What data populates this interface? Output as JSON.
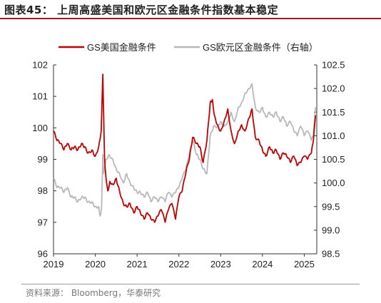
{
  "title": "图表45：  上周高盛美国和欧元区金融条件指数基本稳定",
  "source": "资料来源：  Bloomberg，华泰研究",
  "chart_data": {
    "type": "line",
    "title": "",
    "xlabel": "",
    "ylabel": "",
    "x_ticks": [
      "2019",
      "2020",
      "2021",
      "2022",
      "2023",
      "2024",
      "2025"
    ],
    "x_range": [
      2019.0,
      2025.3
    ],
    "y_left": {
      "range": [
        96,
        102
      ],
      "ticks": [
        "96",
        "97",
        "98",
        "99",
        "100",
        "101",
        "102"
      ]
    },
    "y_right": {
      "range": [
        98.5,
        102.5
      ],
      "ticks": [
        "98.5",
        "99.0",
        "99.5",
        "100.0",
        "100.5",
        "101.0",
        "101.5",
        "102.0",
        "102.5"
      ]
    },
    "legend_position": "top",
    "grid": false,
    "series": [
      {
        "name": "GS美国金融条件",
        "axis": "left",
        "color": "#c00000",
        "x": [
          2019.0,
          2019.08,
          2019.17,
          2019.25,
          2019.33,
          2019.42,
          2019.5,
          2019.58,
          2019.67,
          2019.75,
          2019.83,
          2019.92,
          2020.0,
          2020.08,
          2020.14,
          2020.18,
          2020.2,
          2020.22,
          2020.25,
          2020.3,
          2020.35,
          2020.42,
          2020.5,
          2020.58,
          2020.67,
          2020.75,
          2020.83,
          2020.92,
          2021.0,
          2021.08,
          2021.17,
          2021.25,
          2021.33,
          2021.42,
          2021.5,
          2021.58,
          2021.67,
          2021.75,
          2021.83,
          2021.92,
          2022.0,
          2022.08,
          2022.17,
          2022.25,
          2022.33,
          2022.42,
          2022.5,
          2022.58,
          2022.67,
          2022.75,
          2022.8,
          2022.85,
          2022.92,
          2023.0,
          2023.08,
          2023.17,
          2023.25,
          2023.33,
          2023.42,
          2023.5,
          2023.58,
          2023.67,
          2023.75,
          2023.83,
          2023.92,
          2024.0,
          2024.08,
          2024.17,
          2024.25,
          2024.33,
          2024.42,
          2024.5,
          2024.58,
          2024.67,
          2024.75,
          2024.83,
          2024.92,
          2025.0,
          2025.08,
          2025.17,
          2025.22,
          2025.27
        ],
        "y": [
          99.9,
          99.6,
          99.5,
          99.3,
          99.5,
          99.3,
          99.4,
          99.3,
          99.5,
          99.4,
          99.2,
          99.3,
          99.1,
          99.4,
          99.9,
          101.7,
          100.4,
          99.1,
          98.5,
          98.0,
          98.3,
          98.2,
          98.4,
          98.0,
          97.6,
          97.5,
          97.6,
          97.3,
          97.5,
          97.3,
          97.1,
          97.3,
          97.1,
          97.0,
          97.2,
          97.4,
          97.0,
          97.4,
          97.6,
          97.1,
          97.8,
          98.0,
          98.6,
          99.0,
          99.7,
          99.5,
          99.4,
          98.9,
          99.6,
          100.8,
          100.9,
          100.4,
          100.1,
          99.9,
          100.2,
          100.6,
          99.9,
          99.5,
          99.9,
          100.1,
          99.9,
          100.3,
          100.6,
          99.7,
          99.6,
          99.3,
          99.1,
          99.4,
          99.2,
          99.3,
          99.0,
          99.2,
          99.1,
          98.9,
          99.1,
          98.8,
          98.9,
          99.1,
          99.0,
          99.2,
          99.6,
          100.4
        ]
      },
      {
        "name": "GS欧元区金融条件（右轴）",
        "axis": "right",
        "color": "#b8b8b8",
        "x": [
          2019.0,
          2019.08,
          2019.17,
          2019.25,
          2019.33,
          2019.42,
          2019.5,
          2019.58,
          2019.67,
          2019.75,
          2019.83,
          2019.92,
          2020.0,
          2020.08,
          2020.12,
          2020.15,
          2020.18,
          2020.2,
          2020.25,
          2020.33,
          2020.42,
          2020.5,
          2020.58,
          2020.67,
          2020.75,
          2020.83,
          2020.92,
          2021.0,
          2021.08,
          2021.17,
          2021.25,
          2021.33,
          2021.42,
          2021.5,
          2021.58,
          2021.67,
          2021.75,
          2021.83,
          2021.92,
          2022.0,
          2022.08,
          2022.17,
          2022.25,
          2022.33,
          2022.42,
          2022.5,
          2022.58,
          2022.67,
          2022.75,
          2022.83,
          2022.92,
          2023.0,
          2023.08,
          2023.17,
          2023.25,
          2023.33,
          2023.42,
          2023.5,
          2023.58,
          2023.67,
          2023.75,
          2023.83,
          2023.92,
          2024.0,
          2024.08,
          2024.17,
          2024.25,
          2024.33,
          2024.42,
          2024.5,
          2024.58,
          2024.67,
          2024.75,
          2024.83,
          2024.92,
          2025.0,
          2025.08,
          2025.17,
          2025.22,
          2025.27
        ],
        "y": [
          100.1,
          99.9,
          99.9,
          99.8,
          99.9,
          99.7,
          99.7,
          99.6,
          99.7,
          99.7,
          99.6,
          99.6,
          99.5,
          99.5,
          99.3,
          99.5,
          100.6,
          100.2,
          100.5,
          100.6,
          100.5,
          100.3,
          100.2,
          100.0,
          100.2,
          100.0,
          99.9,
          99.8,
          99.8,
          99.7,
          99.8,
          99.6,
          99.7,
          99.6,
          99.7,
          99.6,
          99.8,
          99.7,
          99.8,
          99.9,
          100.1,
          100.3,
          100.6,
          100.9,
          100.6,
          100.5,
          100.3,
          100.2,
          101.0,
          101.2,
          101.2,
          101.3,
          101.2,
          101.3,
          101.5,
          101.3,
          101.6,
          101.7,
          101.9,
          102.0,
          102.1,
          101.6,
          101.5,
          101.6,
          101.4,
          101.5,
          101.4,
          101.5,
          101.3,
          101.4,
          101.2,
          101.3,
          101.1,
          101.0,
          101.2,
          101.0,
          101.1,
          100.9,
          101.0,
          101.6
        ]
      }
    ]
  }
}
